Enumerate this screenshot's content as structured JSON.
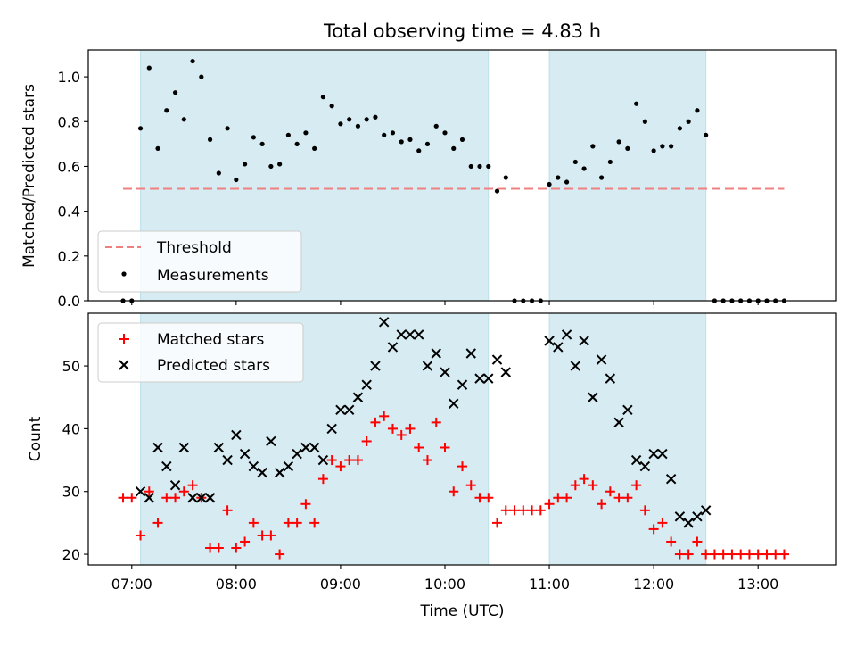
{
  "chart_data": [
    {
      "type": "scatter",
      "title": "Total observing time = 4.83 h",
      "xlabel": "",
      "ylabel": "Matched/Predicted stars",
      "ylim": [
        0,
        1.12
      ],
      "yticks": [
        "0.0",
        "0.2",
        "0.4",
        "0.6",
        "0.8",
        "1.0"
      ],
      "shaded_spans": [
        [
          "07:05",
          "10:25"
        ],
        [
          "11:00",
          "12:30"
        ]
      ],
      "legend_position": "lower-left",
      "threshold": {
        "name": "Threshold",
        "color": "#f08080",
        "x": [
          "06:55",
          "13:15"
        ],
        "y": [
          0.5,
          0.5
        ]
      },
      "series": [
        {
          "name": "Measurements",
          "color": "#000000",
          "x": [
            "06:55",
            "07:00",
            "07:05",
            "07:10",
            "07:15",
            "07:20",
            "07:25",
            "07:30",
            "07:35",
            "07:40",
            "07:45",
            "07:50",
            "07:55",
            "08:00",
            "08:05",
            "08:10",
            "08:15",
            "08:20",
            "08:25",
            "08:30",
            "08:35",
            "08:40",
            "08:45",
            "08:50",
            "08:55",
            "09:00",
            "09:05",
            "09:10",
            "09:15",
            "09:20",
            "09:25",
            "09:30",
            "09:35",
            "09:40",
            "09:45",
            "09:50",
            "09:55",
            "10:00",
            "10:05",
            "10:10",
            "10:15",
            "10:20",
            "10:25",
            "10:30",
            "10:35",
            "10:40",
            "10:45",
            "10:50",
            "10:55",
            "11:00",
            "11:05",
            "11:10",
            "11:15",
            "11:20",
            "11:25",
            "11:30",
            "11:35",
            "11:40",
            "11:45",
            "11:50",
            "11:55",
            "12:00",
            "12:05",
            "12:10",
            "12:15",
            "12:20",
            "12:25",
            "12:30",
            "12:35",
            "12:40",
            "12:45",
            "12:50",
            "12:55",
            "13:00",
            "13:05",
            "13:10",
            "13:15"
          ],
          "y": [
            0.0,
            0.0,
            0.77,
            1.04,
            0.68,
            0.85,
            0.93,
            0.81,
            1.07,
            1.0,
            0.72,
            0.57,
            0.77,
            0.54,
            0.61,
            0.73,
            0.7,
            0.6,
            0.61,
            0.74,
            0.7,
            0.75,
            0.68,
            0.91,
            0.87,
            0.79,
            0.81,
            0.78,
            0.81,
            0.82,
            0.74,
            0.75,
            0.71,
            0.72,
            0.67,
            0.7,
            0.78,
            0.75,
            0.68,
            0.72,
            0.6,
            0.6,
            0.6,
            0.49,
            0.55,
            0.0,
            0.0,
            0.0,
            0.0,
            0.52,
            0.55,
            0.53,
            0.62,
            0.59,
            0.69,
            0.55,
            0.62,
            0.71,
            0.68,
            0.88,
            0.8,
            0.67,
            0.69,
            0.69,
            0.77,
            0.8,
            0.85,
            0.74,
            0.0,
            0.0,
            0.0,
            0.0,
            0.0,
            0.0,
            0.0,
            0.0,
            0.0
          ]
        }
      ]
    },
    {
      "type": "scatter",
      "title": "",
      "xlabel": "Time (UTC)",
      "ylabel": "Count",
      "ylim": [
        18.3,
        58.4
      ],
      "yticks": [
        "20",
        "30",
        "40",
        "50"
      ],
      "xlim": [
        "06:35",
        "13:45"
      ],
      "xticks": [
        "07:00",
        "08:00",
        "09:00",
        "10:00",
        "11:00",
        "12:00",
        "13:00"
      ],
      "shaded_spans": [
        [
          "07:05",
          "10:25"
        ],
        [
          "11:00",
          "12:30"
        ]
      ],
      "legend_position": "top-left",
      "series": [
        {
          "name": "Matched stars",
          "marker": "+",
          "color": "#ff0000",
          "x": [
            "06:55",
            "07:00",
            "07:05",
            "07:10",
            "07:15",
            "07:20",
            "07:25",
            "07:30",
            "07:35",
            "07:40",
            "07:45",
            "07:50",
            "07:55",
            "08:00",
            "08:05",
            "08:10",
            "08:15",
            "08:20",
            "08:25",
            "08:30",
            "08:35",
            "08:40",
            "08:45",
            "08:50",
            "08:55",
            "09:00",
            "09:05",
            "09:10",
            "09:15",
            "09:20",
            "09:25",
            "09:30",
            "09:35",
            "09:40",
            "09:45",
            "09:50",
            "09:55",
            "10:00",
            "10:05",
            "10:10",
            "10:15",
            "10:20",
            "10:25",
            "10:30",
            "10:35",
            "10:40",
            "10:45",
            "10:50",
            "10:55",
            "11:00",
            "11:05",
            "11:10",
            "11:15",
            "11:20",
            "11:25",
            "11:30",
            "11:35",
            "11:40",
            "11:45",
            "11:50",
            "11:55",
            "12:00",
            "12:05",
            "12:10",
            "12:15",
            "12:20",
            "12:25",
            "12:30",
            "12:35",
            "12:40",
            "12:45",
            "12:50",
            "12:55",
            "13:00",
            "13:05",
            "13:10",
            "13:15"
          ],
          "y": [
            29,
            29,
            23,
            30,
            25,
            29,
            29,
            30,
            31,
            29,
            21,
            21,
            27,
            21,
            22,
            25,
            23,
            23,
            20,
            25,
            25,
            28,
            25,
            32,
            35,
            34,
            35,
            35,
            38,
            41,
            42,
            40,
            39,
            40,
            37,
            35,
            41,
            37,
            30,
            34,
            31,
            29,
            29,
            25,
            27,
            27,
            27,
            27,
            27,
            28,
            29,
            29,
            31,
            32,
            31,
            28,
            30,
            29,
            29,
            31,
            27,
            24,
            25,
            22,
            20,
            20,
            22,
            20,
            20,
            20,
            20,
            20,
            20,
            20,
            20,
            20,
            20
          ]
        },
        {
          "name": "Predicted stars",
          "marker": "x",
          "color": "#000000",
          "x": [
            "07:05",
            "07:10",
            "07:15",
            "07:20",
            "07:25",
            "07:30",
            "07:35",
            "07:40",
            "07:45",
            "07:50",
            "07:55",
            "08:00",
            "08:05",
            "08:10",
            "08:15",
            "08:20",
            "08:25",
            "08:30",
            "08:35",
            "08:40",
            "08:45",
            "08:50",
            "08:55",
            "09:00",
            "09:05",
            "09:10",
            "09:15",
            "09:20",
            "09:25",
            "09:30",
            "09:35",
            "09:40",
            "09:45",
            "09:50",
            "09:55",
            "10:00",
            "10:05",
            "10:10",
            "10:15",
            "10:20",
            "10:25",
            "10:30",
            "10:35",
            "11:00",
            "11:05",
            "11:10",
            "11:15",
            "11:20",
            "11:25",
            "11:30",
            "11:35",
            "11:40",
            "11:45",
            "11:50",
            "11:55",
            "12:00",
            "12:05",
            "12:10",
            "12:15",
            "12:20",
            "12:25",
            "12:30"
          ],
          "y": [
            30,
            29,
            37,
            34,
            31,
            37,
            29,
            29,
            29,
            37,
            35,
            39,
            36,
            34,
            33,
            38,
            33,
            34,
            36,
            37,
            37,
            35,
            40,
            43,
            43,
            45,
            47,
            50,
            57,
            53,
            55,
            55,
            55,
            50,
            52,
            49,
            44,
            47,
            52,
            48,
            48,
            51,
            49,
            54,
            53,
            55,
            50,
            54,
            45,
            51,
            48,
            41,
            43,
            35,
            34,
            36,
            36,
            32,
            26,
            25,
            26,
            27
          ]
        }
      ]
    }
  ]
}
